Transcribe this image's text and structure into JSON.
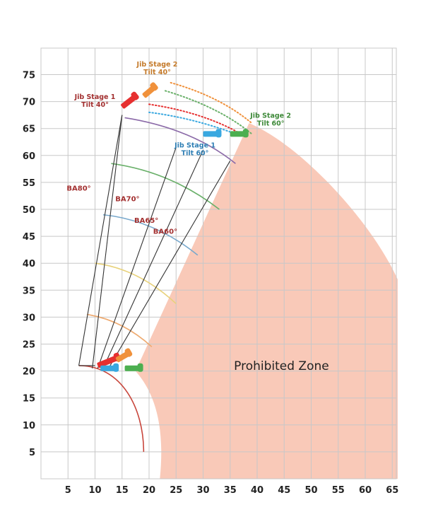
{
  "chart_data": {
    "type": "diagram",
    "x_ticks": [
      5,
      10,
      15,
      20,
      25,
      30,
      35,
      40,
      45,
      50,
      55,
      60,
      65
    ],
    "y_ticks": [
      5,
      10,
      15,
      20,
      25,
      30,
      35,
      40,
      45,
      50,
      55,
      60,
      65,
      70,
      75
    ],
    "xlim": [
      0,
      66
    ],
    "ylim": [
      0,
      80
    ],
    "grid": true,
    "prohibited_zone_label": "Prohibited Zone",
    "boom_angle_labels": [
      {
        "text": "BA80°",
        "x": 7,
        "y": 53.5
      },
      {
        "text": "BA70°",
        "x": 16,
        "y": 51.5
      },
      {
        "text": "BA65°",
        "x": 19.5,
        "y": 47.5
      },
      {
        "text": "BA60°",
        "x": 23,
        "y": 45.5
      }
    ],
    "jib_labels": [
      {
        "line1": "Jib Stage 2",
        "line2": "Tilt 40°",
        "x": 21.5,
        "y": 76.5,
        "color": "#c47a2a"
      },
      {
        "line1": "Jib Stage 1",
        "line2": "Tilt 40°",
        "x": 10,
        "y": 70.5,
        "color": "#a22f2f"
      },
      {
        "line1": "Jib Stage 2",
        "line2": "Tilt 60°",
        "x": 42.5,
        "y": 67,
        "color": "#3f8a3a"
      },
      {
        "line1": "Jib Stage 1",
        "line2": "Tilt 60°",
        "x": 28.5,
        "y": 61.5,
        "color": "#2f7fb5"
      }
    ],
    "colors": {
      "zone": "#f9c9b8",
      "grid": "#c8c8c8",
      "base_arc": "#c8463c",
      "red_jib": "#e63030",
      "orange_jib": "#f0913b",
      "blue_jib": "#39a8e0",
      "green_jib": "#4caf50",
      "arc_purple": "#8b6aa8",
      "arc_green": "#6ab06a",
      "arc_blue": "#78a8cc",
      "arc_yellow": "#e8d27a",
      "arc_orange": "#eeaa70"
    }
  }
}
